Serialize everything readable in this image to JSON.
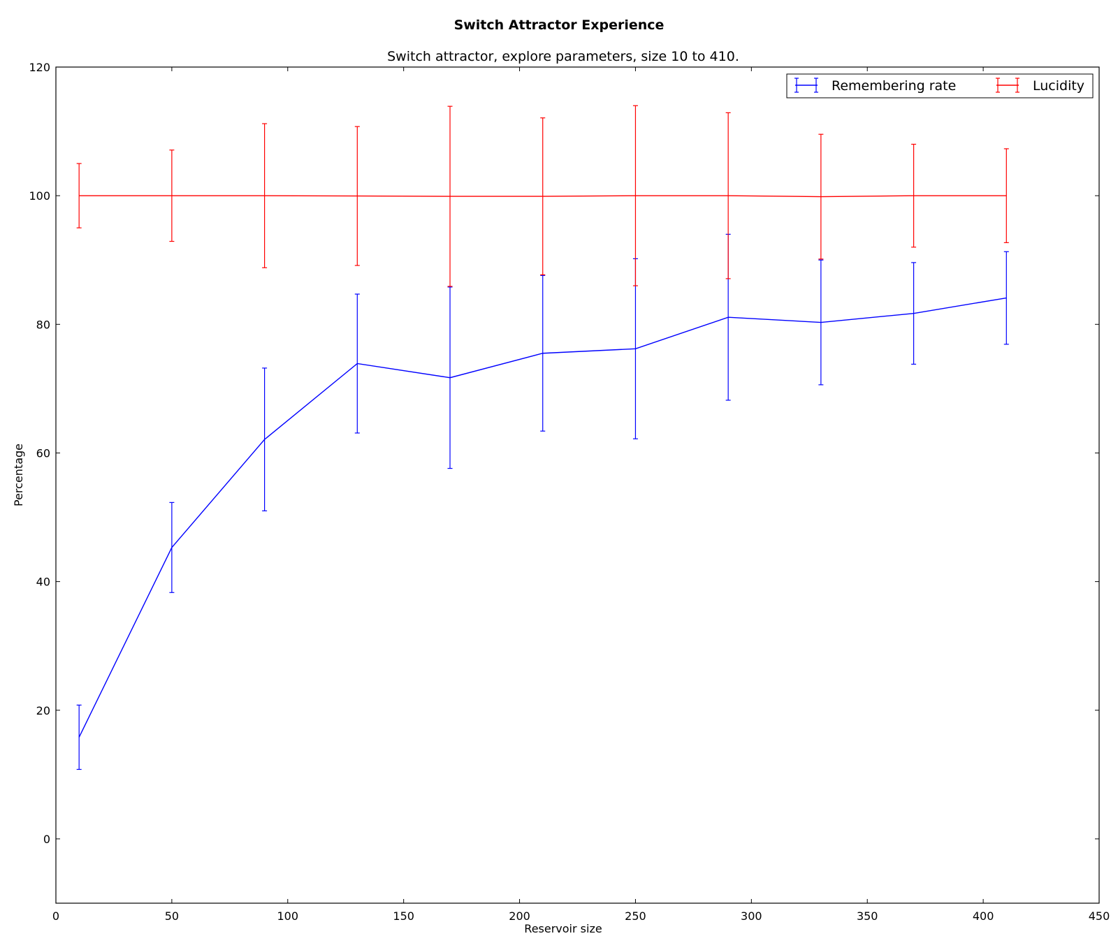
{
  "chart_data": {
    "type": "line",
    "suptitle": "Switch Attractor Experience",
    "title": "Switch attractor, explore parameters, size 10 to 410.",
    "xlabel": "Reservoir size",
    "ylabel": "Percentage",
    "xlim": [
      0,
      450
    ],
    "ylim": [
      -10,
      120
    ],
    "xticks": [
      0,
      50,
      100,
      150,
      200,
      250,
      300,
      350,
      400,
      450
    ],
    "yticks": [
      0,
      20,
      40,
      60,
      80,
      100,
      120
    ],
    "grid": false,
    "legend_position": "top-right",
    "x": [
      10,
      50,
      90,
      130,
      170,
      210,
      250,
      290,
      330,
      370,
      410
    ],
    "series": [
      {
        "name": "Remembering rate",
        "color": "#0000ff",
        "values": [
          15.8,
          45.3,
          62.1,
          73.9,
          71.7,
          75.5,
          76.2,
          81.1,
          80.3,
          81.7,
          84.1
        ],
        "errors": [
          5.0,
          7.0,
          11.1,
          10.8,
          14.1,
          12.1,
          14.0,
          12.9,
          9.7,
          7.9,
          7.2
        ]
      },
      {
        "name": "Lucidity",
        "color": "#ff0000",
        "values": [
          100.0,
          100.0,
          100.0,
          99.95,
          99.9,
          99.9,
          100.0,
          100.0,
          99.85,
          100.0,
          100.0
        ],
        "errors": [
          5.0,
          7.1,
          11.2,
          10.8,
          14.0,
          12.2,
          14.0,
          12.9,
          9.7,
          8.0,
          7.3
        ]
      }
    ]
  }
}
